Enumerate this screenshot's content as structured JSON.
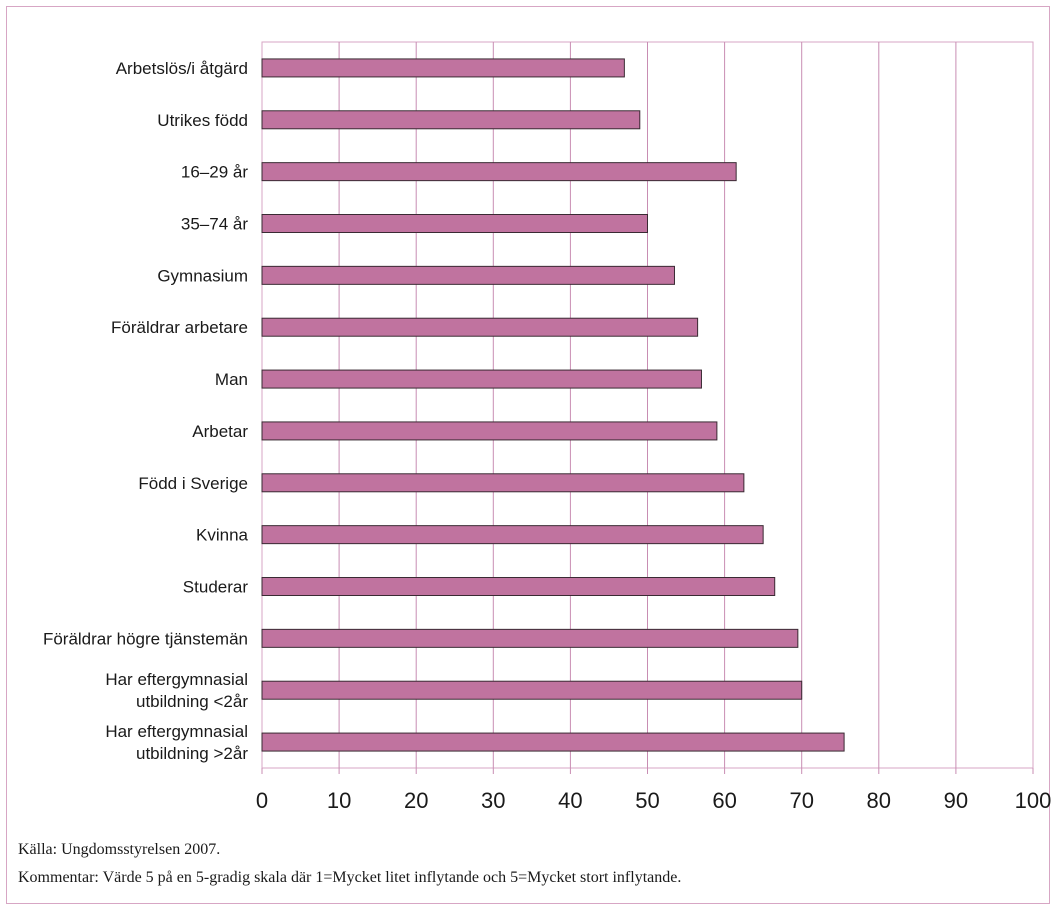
{
  "chart_data": {
    "type": "bar",
    "orientation": "horizontal",
    "categories": [
      [
        "Arbetslös/i åtgärd"
      ],
      [
        "Utrikes född"
      ],
      [
        "16–29 år"
      ],
      [
        "35–74 år"
      ],
      [
        "Gymnasium"
      ],
      [
        "Föräldrar arbetare"
      ],
      [
        "Man"
      ],
      [
        "Arbetar"
      ],
      [
        "Född i Sverige"
      ],
      [
        "Kvinna"
      ],
      [
        "Studerar"
      ],
      [
        "Föräldrar högre tjänstemän"
      ],
      [
        "Har eftergymnasial",
        "utbildning <2år"
      ],
      [
        "Har eftergymnasial",
        "utbildning >2år"
      ]
    ],
    "values": [
      47,
      49,
      61.5,
      50,
      53.5,
      56.5,
      57,
      59,
      62.5,
      65,
      66.5,
      69.5,
      70,
      75.5
    ],
    "xlim": [
      0,
      100
    ],
    "xticks": [
      "0",
      "10",
      "20",
      "30",
      "40",
      "50",
      "60",
      "70",
      "80",
      "90",
      "100"
    ],
    "grid": true,
    "colors": {
      "bar": "#c0739f",
      "bar_edge": "#3a2a33",
      "grid": "#c88db3",
      "frame": "#d7a6c4"
    }
  },
  "source": "Källa: Ungdomsstyrelsen 2007.",
  "comment": "Kommentar: Värde 5 på en 5-gradig skala där 1=Mycket litet inflytande och 5=Mycket stort inflytande."
}
